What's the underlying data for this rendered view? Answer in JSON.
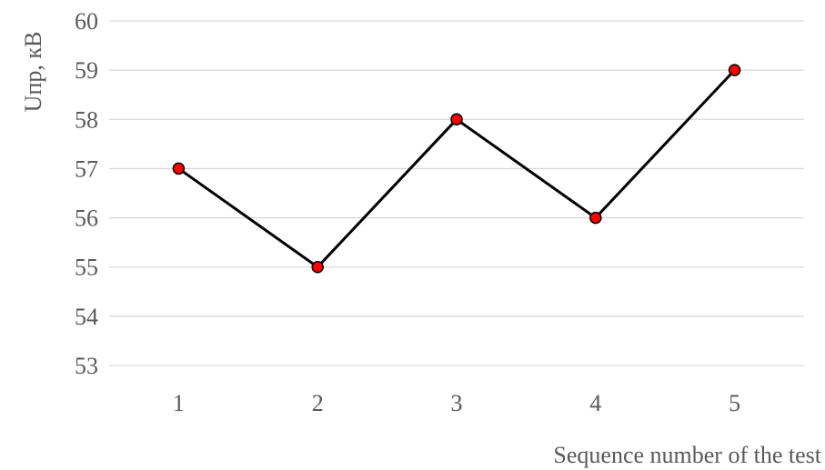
{
  "chart_data": {
    "type": "line",
    "title": "",
    "xlabel": "Sequence number of the test",
    "ylabel": "Uпр, кВ",
    "categories": [
      "1",
      "2",
      "3",
      "4",
      "5"
    ],
    "series": [
      {
        "values": [
          57,
          55,
          58,
          56,
          59
        ]
      }
    ],
    "ylim": [
      53,
      60
    ],
    "yticks": [
      "53",
      "54",
      "55",
      "56",
      "57",
      "58",
      "59",
      "60"
    ],
    "grid": true,
    "legend": "none",
    "line_color": "#000000",
    "marker_fill": "#ff0000",
    "marker_stroke": "#000000",
    "grid_color": "#d9d9d9",
    "text_color": "#595959"
  }
}
